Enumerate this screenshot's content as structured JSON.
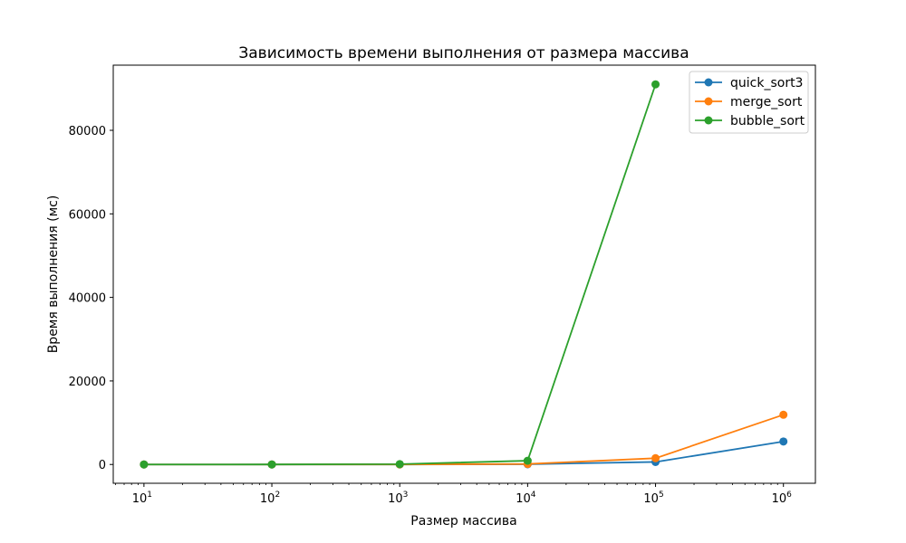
{
  "chart_data": {
    "type": "line",
    "title": "Зависимость времени выполнения от размера массива",
    "xlabel": "Размер массива",
    "ylabel": "Время выполнения (мс)",
    "x_scale": "log",
    "x": [
      10,
      100,
      1000,
      10000,
      100000,
      1000000
    ],
    "x_tick_labels": [
      {
        "base": "10",
        "exp": "1"
      },
      {
        "base": "10",
        "exp": "2"
      },
      {
        "base": "10",
        "exp": "3"
      },
      {
        "base": "10",
        "exp": "4"
      },
      {
        "base": "10",
        "exp": "5"
      },
      {
        "base": "10",
        "exp": "6"
      }
    ],
    "y_ticks": [
      0,
      20000,
      40000,
      60000,
      80000
    ],
    "y_tick_labels": [
      "0",
      "20000",
      "40000",
      "60000",
      "80000"
    ],
    "ylim": [
      -4500,
      95600
    ],
    "grid": false,
    "legend_position": "top-right",
    "series": [
      {
        "name": "quick_sort3",
        "color": "#1f77b4",
        "values": [
          0,
          0,
          5,
          60,
          600,
          5500
        ]
      },
      {
        "name": "merge_sort",
        "color": "#ff7f0e",
        "values": [
          0,
          1,
          10,
          120,
          1500,
          11900
        ]
      },
      {
        "name": "bubble_sort",
        "color": "#2ca02c",
        "values": [
          0,
          5,
          80,
          900,
          91000,
          null
        ]
      }
    ]
  }
}
